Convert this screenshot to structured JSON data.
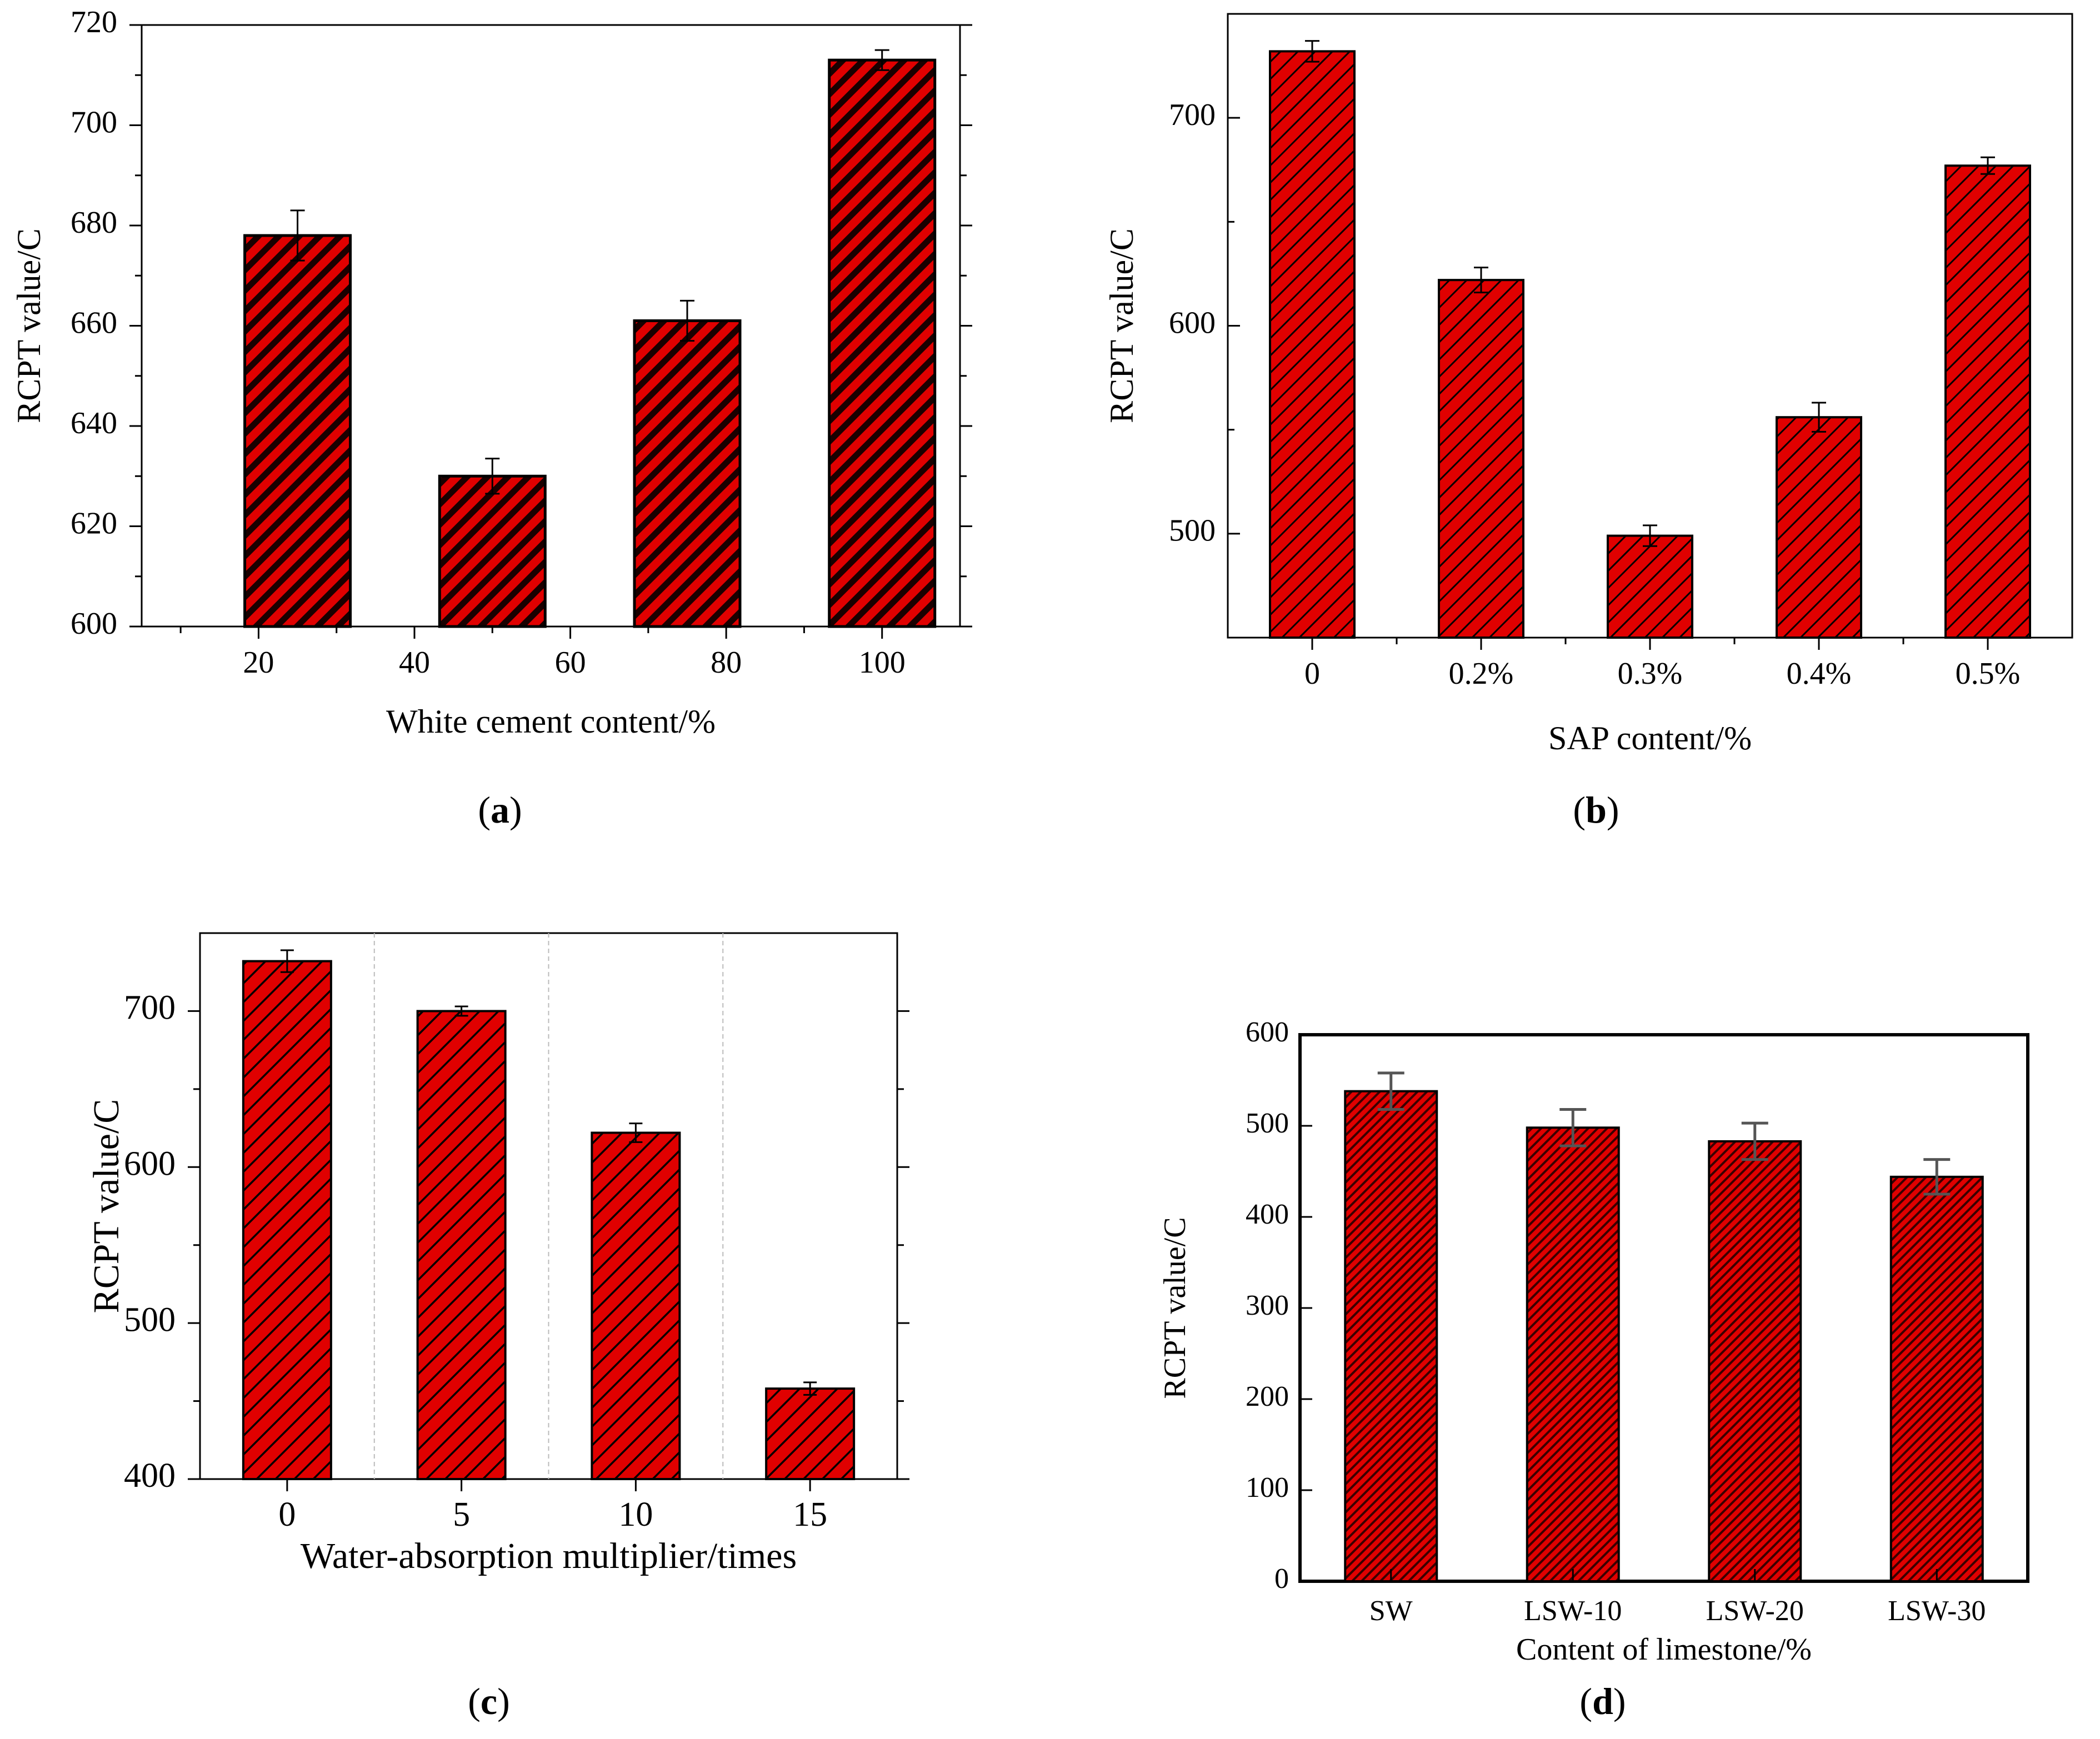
{
  "colors": {
    "bar_fill": "#e00000",
    "hatch_line": "#000000",
    "error_bar_d": "#555555"
  },
  "chart_data": [
    {
      "type": "bar",
      "panel_label": "a",
      "xlabel": "White cement content/%",
      "ylabel": "RCPT value/C",
      "x": [
        25,
        50,
        75,
        100
      ],
      "values": [
        678,
        630,
        661,
        713
      ],
      "errors": [
        5,
        3.5,
        4,
        2
      ],
      "xlim": [
        5,
        110
      ],
      "xticks": [
        "20",
        "40",
        "60",
        "80",
        "100"
      ],
      "xtick_values": [
        20,
        40,
        60,
        80,
        100
      ],
      "ylim": [
        600,
        720
      ],
      "yticks": [
        "600",
        "620",
        "640",
        "660",
        "680",
        "700",
        "720"
      ],
      "ytick_values": [
        600,
        620,
        640,
        660,
        680,
        700,
        720
      ]
    },
    {
      "type": "bar",
      "panel_label": "b",
      "xlabel": "SAP content/%",
      "ylabel": "RCPT value/C",
      "categories": [
        "0",
        "0.2%",
        "0.3%",
        "0.4%",
        "0.5%"
      ],
      "values": [
        732,
        622,
        499,
        556,
        677
      ],
      "errors": [
        5,
        6,
        5,
        7,
        4
      ],
      "ylim": [
        450,
        750
      ],
      "yticks": [
        "500",
        "600",
        "700"
      ],
      "ytick_values": [
        500,
        600,
        700
      ]
    },
    {
      "type": "bar",
      "panel_label": "c",
      "xlabel": "Water-absorption multiplier/times",
      "ylabel": "RCPT value/C",
      "categories": [
        "0",
        "5",
        "10",
        "15"
      ],
      "values": [
        732,
        700,
        622,
        458
      ],
      "errors": [
        7,
        3,
        6,
        4
      ],
      "ylim": [
        400,
        750
      ],
      "yticks": [
        "400",
        "500",
        "600",
        "700"
      ],
      "ytick_values": [
        400,
        500,
        600,
        700
      ]
    },
    {
      "type": "bar",
      "panel_label": "d",
      "xlabel": "Content of limestone/%",
      "ylabel": "RCPT value/C",
      "categories": [
        "SW",
        "LSW-10",
        "LSW-20",
        "LSW-30"
      ],
      "values": [
        538,
        498,
        483,
        444
      ],
      "errors": [
        20,
        20,
        20,
        19
      ],
      "ylim": [
        0,
        600
      ],
      "yticks": [
        "0",
        "100",
        "200",
        "300",
        "400",
        "500",
        "600"
      ],
      "ytick_values": [
        0,
        100,
        200,
        300,
        400,
        500,
        600
      ]
    }
  ]
}
